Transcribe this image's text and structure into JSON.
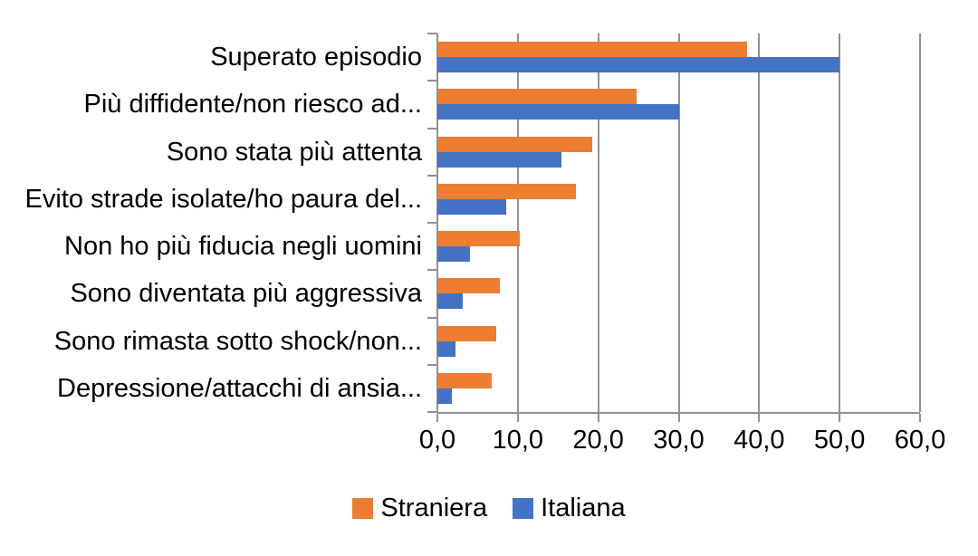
{
  "chart_data": {
    "type": "bar",
    "orientation": "horizontal",
    "title": "",
    "categories": [
      "Superato episodio",
      "Più diffidente/non riesco ad...",
      "Sono stata più attenta",
      "Evito strade isolate/ho paura del...",
      "Non ho più fiducia negli uomini",
      "Sono diventata più aggressiva",
      "Sono rimasta sotto shock/non...",
      "Depressione/attacchi di ansia..."
    ],
    "series": [
      {
        "name": "Straniera",
        "color": "#ED7D31",
        "values": [
          38.5,
          24.8,
          19.2,
          17.2,
          10.3,
          7.8,
          7.3,
          6.8
        ]
      },
      {
        "name": "Italiana",
        "color": "#4472C4",
        "values": [
          50.0,
          30.0,
          15.4,
          8.6,
          4.1,
          3.2,
          2.3,
          1.8
        ]
      }
    ],
    "x_axis": {
      "min": 0,
      "max": 60,
      "tick_step": 10,
      "tick_labels": [
        "0,0",
        "10,0",
        "20,0",
        "30,0",
        "40,0",
        "50,0",
        "60,0"
      ]
    },
    "legend": {
      "position": "bottom"
    },
    "grid": true,
    "colors": {
      "gridline": "#919191",
      "text": "#000000",
      "background": "#FFFFFF"
    }
  }
}
